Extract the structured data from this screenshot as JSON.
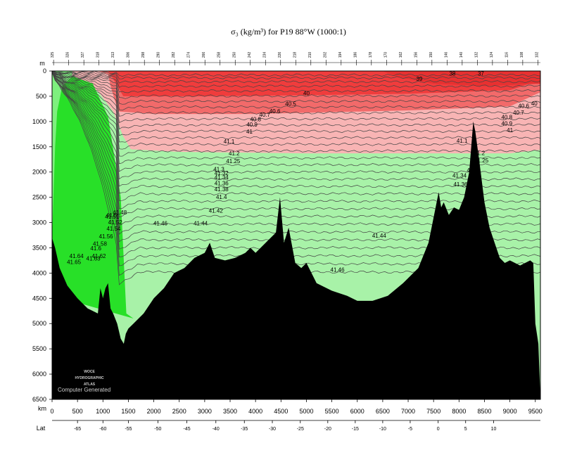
{
  "chart_data": {
    "type": "contour-section",
    "title": "σ₃ (kg/m³) for P19 88°W (1000:1)",
    "x_axis": {
      "label": "km",
      "range": [
        0,
        9600
      ],
      "ticks": [
        0,
        500,
        1000,
        1500,
        2000,
        2500,
        3000,
        3500,
        4000,
        4500,
        5000,
        5500,
        6000,
        6500,
        7000,
        7500,
        8000,
        8500,
        9000,
        9500
      ]
    },
    "y_axis": {
      "label": "m",
      "range": [
        0,
        6500
      ],
      "reversed": true,
      "ticks": [
        0,
        500,
        1000,
        1500,
        2000,
        2500,
        3000,
        3500,
        4000,
        4500,
        5000,
        5500,
        6000,
        6500
      ]
    },
    "lat_axis": {
      "label": "Lat",
      "ticks": [
        {
          "label": "-65",
          "km": 500
        },
        {
          "label": "-60",
          "km": 1000
        },
        {
          "label": "-55",
          "km": 1500
        },
        {
          "label": "-50",
          "km": 2080
        },
        {
          "label": "-45",
          "km": 2650
        },
        {
          "label": "-40",
          "km": 3220
        },
        {
          "label": "-35",
          "km": 3780
        },
        {
          "label": "-30",
          "km": 4330
        },
        {
          "label": "-25",
          "km": 4880
        },
        {
          "label": "-20",
          "km": 5420
        },
        {
          "label": "-15",
          "km": 5960
        },
        {
          "label": "-10",
          "km": 6500
        },
        {
          "label": "-5",
          "km": 7040
        },
        {
          "label": "0",
          "km": 7590
        },
        {
          "label": "5",
          "km": 8130
        },
        {
          "label": "10",
          "km": 8680
        }
      ]
    },
    "stations": [
      "325",
      "326",
      "327",
      "318",
      "313",
      "306",
      "298",
      "290",
      "282",
      "274",
      "266",
      "258",
      "250",
      "242",
      "234",
      "226",
      "218",
      "210",
      "202",
      "194",
      "186",
      "178",
      "170",
      "162",
      "156",
      "150",
      "146",
      "140",
      "132",
      "124",
      "116",
      "108",
      "102"
    ],
    "fill_bands": [
      {
        "range": "< 40",
        "color": "#f03c3c"
      },
      {
        "range": "40 - 40.8",
        "color": "#f26a6a"
      },
      {
        "range": "40.8 - 41.2",
        "color": "#f8b4b4"
      },
      {
        "range": "41.2 - 41.46",
        "color": "#a8f2a8"
      },
      {
        "range": "41.46 - 41.6",
        "color": "#7ef07e"
      },
      {
        "range": "> 41.6",
        "color": "#28e028"
      }
    ],
    "contour_levels": [
      38,
      39,
      40,
      40.5,
      40.6,
      40.7,
      40.8,
      40.9,
      41,
      41.1,
      41.2,
      41.25,
      41.3,
      41.32,
      41.34,
      41.36,
      41.38,
      41.4,
      41.42,
      41.44,
      41.46,
      41.48,
      41.5,
      41.52,
      41.54,
      41.56,
      41.58,
      41.6,
      41.62,
      41.64,
      41.65
    ],
    "contour_labels": [
      {
        "text": "39",
        "km": 7220,
        "depth": 150
      },
      {
        "text": "38",
        "km": 7870,
        "depth": 50
      },
      {
        "text": "37",
        "km": 8430,
        "depth": 50
      },
      {
        "text": "40",
        "km": 5000,
        "depth": 440
      },
      {
        "text": "40.5",
        "km": 4690,
        "depth": 650
      },
      {
        "text": "40.6",
        "km": 4380,
        "depth": 790
      },
      {
        "text": "40.7",
        "km": 4180,
        "depth": 860
      },
      {
        "text": "40.8",
        "km": 4000,
        "depth": 950
      },
      {
        "text": "40.9",
        "km": 3930,
        "depth": 1060
      },
      {
        "text": "41",
        "km": 3880,
        "depth": 1200
      },
      {
        "text": "41.1",
        "km": 3480,
        "depth": 1390
      },
      {
        "text": "41.2",
        "km": 3580,
        "depth": 1630
      },
      {
        "text": "41.25",
        "km": 3560,
        "depth": 1780
      },
      {
        "text": "41.3",
        "km": 3280,
        "depth": 1940
      },
      {
        "text": "41.32",
        "km": 3330,
        "depth": 2020
      },
      {
        "text": "41.34",
        "km": 3330,
        "depth": 2100
      },
      {
        "text": "41.36",
        "km": 3330,
        "depth": 2220
      },
      {
        "text": "41.38",
        "km": 3330,
        "depth": 2340
      },
      {
        "text": "41.4",
        "km": 3330,
        "depth": 2490
      },
      {
        "text": "41.42",
        "km": 3220,
        "depth": 2760
      },
      {
        "text": "41.44",
        "km": 2920,
        "depth": 3010
      },
      {
        "text": "41.46",
        "km": 2130,
        "depth": 3010
      },
      {
        "text": "41.48",
        "km": 1330,
        "depth": 2800
      },
      {
        "text": "41.5",
        "km": 1170,
        "depth": 2850
      },
      {
        "text": "41.51",
        "km": 1180,
        "depth": 2880
      },
      {
        "text": "41.52",
        "km": 1240,
        "depth": 2990
      },
      {
        "text": "41.54",
        "km": 1210,
        "depth": 3120
      },
      {
        "text": "41.56",
        "km": 1060,
        "depth": 3270
      },
      {
        "text": "41.58",
        "km": 940,
        "depth": 3420
      },
      {
        "text": "41.6",
        "km": 860,
        "depth": 3510
      },
      {
        "text": "41.62",
        "km": 920,
        "depth": 3660
      },
      {
        "text": "41.63",
        "km": 810,
        "depth": 3710
      },
      {
        "text": "41.64",
        "km": 480,
        "depth": 3660
      },
      {
        "text": "41.65",
        "km": 430,
        "depth": 3780
      },
      {
        "text": "41.44",
        "km": 6430,
        "depth": 3260
      },
      {
        "text": "41.46",
        "km": 5610,
        "depth": 3930
      },
      {
        "text": "41.1",
        "km": 8060,
        "depth": 1380
      },
      {
        "text": "41.2",
        "km": 8400,
        "depth": 1620
      },
      {
        "text": "41.25",
        "km": 8440,
        "depth": 1770
      },
      {
        "text": "41.3",
        "km": 8260,
        "depth": 1960
      },
      {
        "text": "41.34",
        "km": 8010,
        "depth": 2070
      },
      {
        "text": "41.36",
        "km": 8030,
        "depth": 2240
      },
      {
        "text": "40.6",
        "km": 9270,
        "depth": 690
      },
      {
        "text": "40.7",
        "km": 9170,
        "depth": 820
      },
      {
        "text": "40.8",
        "km": 8940,
        "depth": 910
      },
      {
        "text": "40.9",
        "km": 8940,
        "depth": 1040
      },
      {
        "text": "41",
        "km": 9000,
        "depth": 1170
      },
      {
        "text": "40",
        "km": 9480,
        "depth": 640
      }
    ],
    "bathymetry": [
      [
        0,
        3300
      ],
      [
        60,
        3500
      ],
      [
        150,
        3900
      ],
      [
        300,
        4250
      ],
      [
        500,
        4500
      ],
      [
        700,
        4700
      ],
      [
        900,
        4800
      ],
      [
        950,
        4300
      ],
      [
        1000,
        4500
      ],
      [
        1050,
        4300
      ],
      [
        1100,
        4200
      ],
      [
        1150,
        4700
      ],
      [
        1200,
        4800
      ],
      [
        1280,
        5000
      ],
      [
        1350,
        5300
      ],
      [
        1410,
        5400
      ],
      [
        1450,
        5200
      ],
      [
        1500,
        5100
      ],
      [
        1600,
        5000
      ],
      [
        1800,
        4800
      ],
      [
        2000,
        4500
      ],
      [
        2200,
        4300
      ],
      [
        2400,
        4000
      ],
      [
        2600,
        3900
      ],
      [
        2800,
        3700
      ],
      [
        3000,
        3600
      ],
      [
        3100,
        3400
      ],
      [
        3200,
        3700
      ],
      [
        3400,
        3750
      ],
      [
        3600,
        3700
      ],
      [
        3800,
        3600
      ],
      [
        3900,
        3500
      ],
      [
        4000,
        3600
      ],
      [
        4200,
        3400
      ],
      [
        4400,
        3200
      ],
      [
        4480,
        2500
      ],
      [
        4560,
        3400
      ],
      [
        4650,
        3100
      ],
      [
        4780,
        3800
      ],
      [
        4900,
        3900
      ],
      [
        5000,
        3800
      ],
      [
        5100,
        4000
      ],
      [
        5200,
        4200
      ],
      [
        5500,
        4350
      ],
      [
        5800,
        4450
      ],
      [
        6000,
        4550
      ],
      [
        6300,
        4550
      ],
      [
        6600,
        4450
      ],
      [
        6900,
        4200
      ],
      [
        7200,
        3900
      ],
      [
        7400,
        3400
      ],
      [
        7500,
        2900
      ],
      [
        7600,
        2400
      ],
      [
        7650,
        2700
      ],
      [
        7700,
        2600
      ],
      [
        7800,
        2850
      ],
      [
        7900,
        2700
      ],
      [
        8000,
        2750
      ],
      [
        8100,
        2500
      ],
      [
        8200,
        2000
      ],
      [
        8280,
        1000
      ],
      [
        8320,
        1200
      ],
      [
        8400,
        1800
      ],
      [
        8500,
        2600
      ],
      [
        8600,
        3100
      ],
      [
        8700,
        3400
      ],
      [
        8800,
        3700
      ],
      [
        8900,
        3800
      ],
      [
        9000,
        3750
      ],
      [
        9200,
        3850
      ],
      [
        9400,
        3750
      ],
      [
        9460,
        3800
      ],
      [
        9500,
        5000
      ],
      [
        9560,
        5400
      ],
      [
        9600,
        6500
      ]
    ],
    "logo_text": [
      "WOCE",
      "HYDROGRAPHIC",
      "ATLAS"
    ],
    "footer_note": "Computer Generated",
    "colors": {
      "land": "#000000",
      "frame": "#000000",
      "contour": "#444444"
    }
  }
}
